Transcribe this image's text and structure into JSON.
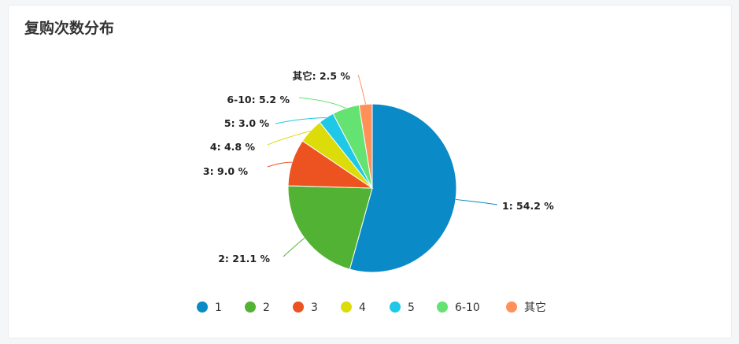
{
  "card": {
    "title": "复购次数分布"
  },
  "chart_data": {
    "type": "pie",
    "slices": [
      {
        "name": "1",
        "value": 54.2,
        "label": "1: 54.2 %",
        "color": "#0a8ac6"
      },
      {
        "name": "2",
        "value": 21.1,
        "label": "2: 21.1 %",
        "color": "#52b233"
      },
      {
        "name": "3",
        "value": 9.0,
        "label": "3: 9.0 %",
        "color": "#ec5320"
      },
      {
        "name": "4",
        "value": 4.8,
        "label": "4: 4.8 %",
        "color": "#dcdc0a"
      },
      {
        "name": "5",
        "value": 3.0,
        "label": "5: 3.0 %",
        "color": "#1ec8e6"
      },
      {
        "name": "6-10",
        "value": 5.2,
        "label": "6-10: 5.2 %",
        "color": "#64e272"
      },
      {
        "name": "其它",
        "value": 2.5,
        "label": "其它: 2.5 %",
        "color": "#ff9058"
      }
    ],
    "legend_position": "bottom"
  }
}
